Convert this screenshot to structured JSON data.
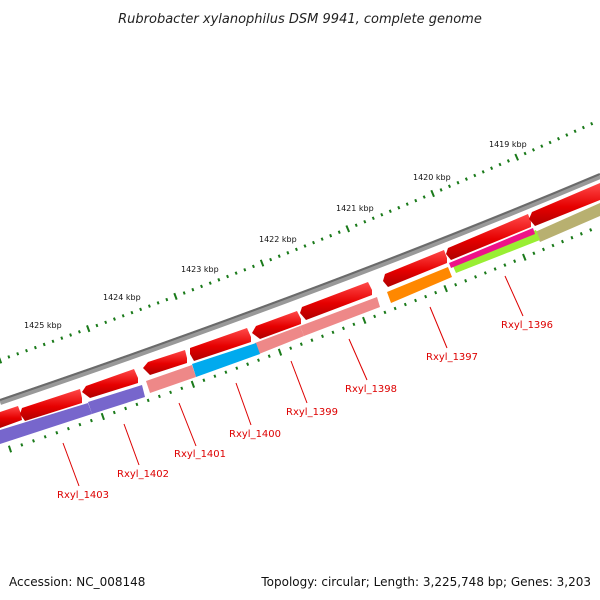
{
  "title": "Rubrobacter xylanophilus DSM 9941, complete genome",
  "footer": {
    "accession": "Accession: NC_008148",
    "summary": "Topology: circular; Length: 3,225,748 bp; Genes: 3,203"
  },
  "colors": {
    "backbone": "#808080",
    "forward_gene": "#ee0000",
    "ticks": "#1a7a1a",
    "label": "#dd0000"
  },
  "kbp_labels": [
    "1425 kbp",
    "1424 kbp",
    "1423 kbp",
    "1422 kbp",
    "1421 kbp",
    "1420 kbp",
    "1419 kbp"
  ],
  "genes": [
    {
      "name": "Rxyl_1396",
      "color": "#b8b070",
      "start_kb": 1419.1,
      "end_kb": 1419.8
    },
    {
      "name": "Rxyl_1397",
      "color": "#ff8800",
      "start_kb": 1420.8,
      "end_kb": 1421.5
    },
    {
      "name": "Rxyl_1398",
      "color": "#ee8888",
      "start_kb": 1421.3,
      "end_kb": 1422.5
    },
    {
      "name": "Rxyl_1399",
      "color": "#ee8888",
      "start_kb": 1422.5,
      "end_kb": 1423.1
    },
    {
      "name": "Rxyl_1400",
      "color": "#00aaee",
      "start_kb": 1423.1,
      "end_kb": 1423.8
    },
    {
      "name": "Rxyl_1401",
      "color": "#ee8888",
      "start_kb": 1423.8,
      "end_kb": 1424.4
    },
    {
      "name": "Rxyl_1402",
      "color": "#7766cc",
      "start_kb": 1424.4,
      "end_kb": 1425.2
    },
    {
      "name": "Rxyl_1403",
      "color": "#7766cc",
      "start_kb": 1425.2,
      "end_kb": 1426.2
    }
  ]
}
